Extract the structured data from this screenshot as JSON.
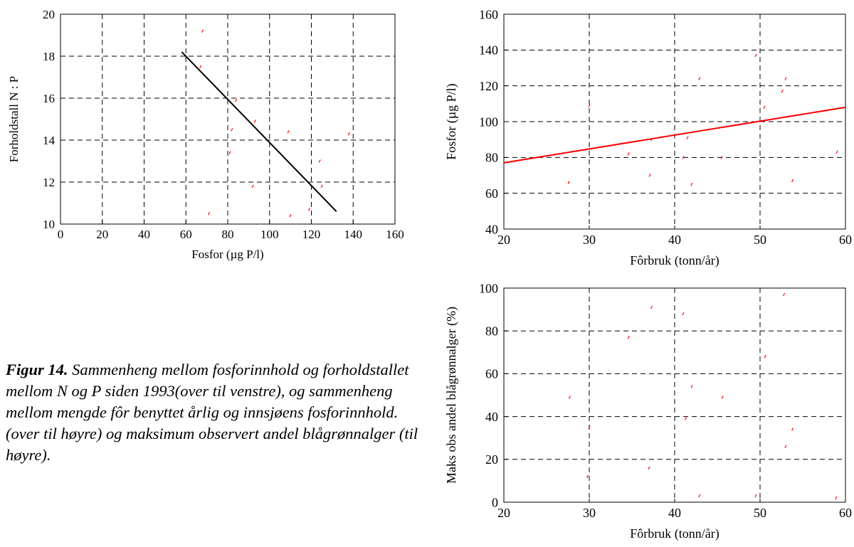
{
  "caption": {
    "label": "Figur 14.",
    "text": " Sammenheng mellom fosforinnhold og forholdstallet mellom N og P siden 1993(over til venstre), og sammenheng mellom mengde fôr benyttet årlig og innsjøens fosforinnhold.(over til høyre) og maksimum observert andel blågrønnalger (til høyre)."
  },
  "chart_data": [
    {
      "id": "np",
      "type": "scatter",
      "xlabel": "Fosfor (µg P/l)",
      "ylabel": "Forholdstall N : P",
      "xlim": [
        0,
        160
      ],
      "ylim": [
        10,
        20
      ],
      "xticks": [
        0,
        20,
        40,
        60,
        80,
        100,
        120,
        140,
        160
      ],
      "yticks": [
        10,
        12,
        14,
        16,
        18,
        20
      ],
      "grid": true,
      "point_color": "#ff0000",
      "points": [
        [
          68,
          19.2
        ],
        [
          67,
          17.5
        ],
        [
          71,
          10.5
        ],
        [
          81,
          13.4
        ],
        [
          82,
          14.5
        ],
        [
          84,
          15.9
        ],
        [
          92,
          11.8
        ],
        [
          93,
          14.9
        ],
        [
          109,
          14.4
        ],
        [
          110,
          10.4
        ],
        [
          119,
          10.7
        ],
        [
          124,
          13.0
        ],
        [
          125,
          11.8
        ],
        [
          138,
          14.3
        ]
      ],
      "trend": {
        "color": "#000000",
        "x": [
          58,
          132
        ],
        "y": [
          18.2,
          10.6
        ]
      }
    },
    {
      "id": "fp",
      "type": "scatter",
      "xlabel": "Fôrbruk (tonn/år)",
      "ylabel": "Fosfor (µg P/l)",
      "xlim": [
        20,
        60
      ],
      "ylim": [
        40,
        160
      ],
      "xticks": [
        20,
        30,
        40,
        50,
        60
      ],
      "yticks": [
        40,
        60,
        80,
        100,
        120,
        140,
        160
      ],
      "grid": true,
      "point_color": "#ff0000",
      "points": [
        [
          27.6,
          66
        ],
        [
          30.0,
          109
        ],
        [
          34.6,
          82
        ],
        [
          37.1,
          70
        ],
        [
          37.3,
          90
        ],
        [
          41.0,
          80
        ],
        [
          41.5,
          91
        ],
        [
          42.0,
          65
        ],
        [
          42.9,
          124
        ],
        [
          45.5,
          80
        ],
        [
          49.5,
          137
        ],
        [
          50.5,
          108
        ],
        [
          52.6,
          117
        ],
        [
          53.0,
          124
        ],
        [
          53.8,
          67
        ],
        [
          59.0,
          83
        ]
      ],
      "trend": {
        "color": "#ff0000",
        "x": [
          20,
          60
        ],
        "y": [
          77,
          108
        ]
      }
    },
    {
      "id": "bg",
      "type": "scatter",
      "xlabel": "Fôrbruk (tonn/år)",
      "ylabel": "Maks obs andel blågrønnalger (%)",
      "xlim": [
        20,
        60
      ],
      "ylim": [
        0,
        100
      ],
      "xticks": [
        20,
        30,
        40,
        50,
        60
      ],
      "yticks": [
        0,
        20,
        40,
        60,
        80,
        100
      ],
      "grid": true,
      "point_color": "#ff0000",
      "points": [
        [
          27.7,
          49
        ],
        [
          29.8,
          12
        ],
        [
          30.0,
          35
        ],
        [
          34.6,
          77
        ],
        [
          37.0,
          16
        ],
        [
          37.3,
          91
        ],
        [
          41.0,
          88
        ],
        [
          41.3,
          39
        ],
        [
          42.0,
          54
        ],
        [
          42.9,
          3
        ],
        [
          45.6,
          49
        ],
        [
          49.5,
          3
        ],
        [
          50.6,
          68
        ],
        [
          52.8,
          97
        ],
        [
          53.0,
          26
        ],
        [
          53.8,
          34
        ],
        [
          58.9,
          2
        ]
      ]
    }
  ]
}
